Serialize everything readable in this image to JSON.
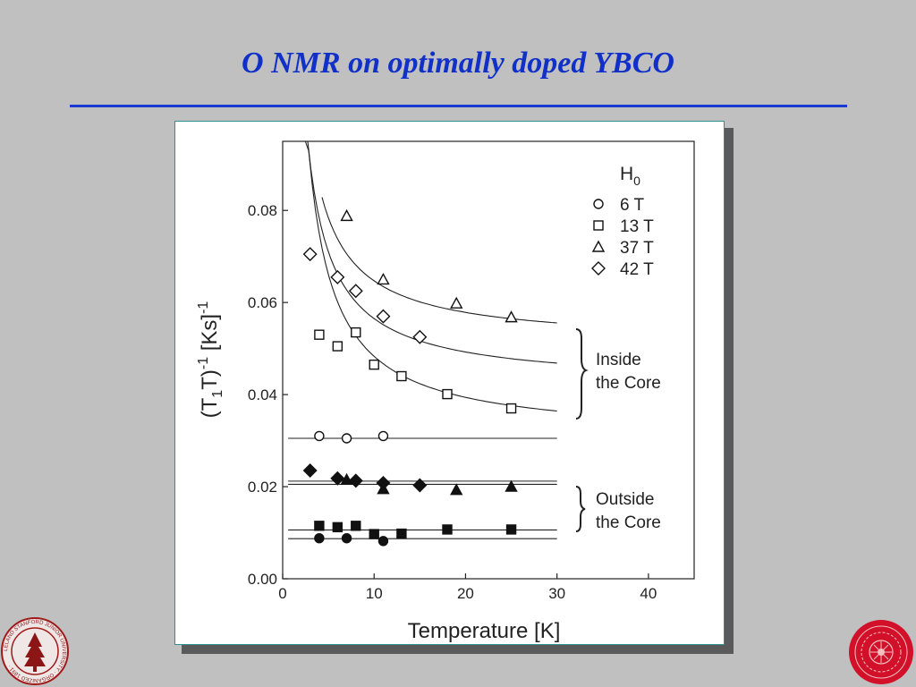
{
  "slide": {
    "title": "O NMR on optimally doped YBCO",
    "title_color": "#1030c8",
    "left_seal_text": "LELAND STANFORD JUNIOR UNIVERSITY · ORGANIZED 1891 ·"
  },
  "chart_data": {
    "type": "scatter",
    "title": "",
    "xlabel": "Temperature [K]",
    "ylabel": "(T1T)-1 [Ks]-1",
    "xlim": [
      0,
      45
    ],
    "ylim": [
      0,
      0.095
    ],
    "x_ticks": [
      "0",
      "10",
      "20",
      "30",
      "40"
    ],
    "y_ticks": [
      "0.00",
      "0.02",
      "0.04",
      "0.06",
      "0.08"
    ],
    "grid": false,
    "legend": {
      "title": "H0",
      "placement": "top-right",
      "entries": [
        {
          "marker": "circle",
          "label": "6 T"
        },
        {
          "marker": "square",
          "label": "13 T"
        },
        {
          "marker": "triangle",
          "label": "37 T"
        },
        {
          "marker": "diamond",
          "label": "42 T"
        }
      ]
    },
    "series": [
      {
        "name": "6 T",
        "marker": "circle",
        "fill": "open",
        "x": [
          4,
          7,
          11
        ],
        "y": [
          0.031,
          0.0305,
          0.031
        ]
      },
      {
        "name": "13 T",
        "marker": "square",
        "fill": "open",
        "x": [
          4,
          6,
          8,
          10,
          13,
          18,
          25
        ],
        "y": [
          0.053,
          0.0505,
          0.0535,
          0.0465,
          0.044,
          0.0401,
          0.037
        ]
      },
      {
        "name": "37 T",
        "marker": "triangle",
        "fill": "open",
        "x": [
          7,
          11,
          19,
          25
        ],
        "y": [
          0.0788,
          0.065,
          0.0598,
          0.0568
        ]
      },
      {
        "name": "42 T",
        "marker": "diamond",
        "fill": "open",
        "x": [
          3,
          6,
          8,
          11,
          15
        ],
        "y": [
          0.0705,
          0.0655,
          0.0625,
          0.057,
          0.0525
        ]
      },
      {
        "name": "6 T",
        "marker": "circle",
        "fill": "filled",
        "x": [
          4,
          7,
          11
        ],
        "y": [
          0.0088,
          0.0088,
          0.0082
        ]
      },
      {
        "name": "13 T",
        "marker": "square",
        "fill": "filled",
        "x": [
          4,
          6,
          8,
          10,
          13,
          18,
          25
        ],
        "y": [
          0.0115,
          0.0112,
          0.0115,
          0.0097,
          0.0098,
          0.0107,
          0.0107
        ]
      },
      {
        "name": "37 T",
        "marker": "triangle",
        "fill": "filled",
        "x": [
          7,
          11,
          19,
          25
        ],
        "y": [
          0.0215,
          0.0195,
          0.0193,
          0.02
        ]
      },
      {
        "name": "42 T",
        "marker": "diamond",
        "fill": "filled",
        "x": [
          3,
          6,
          8,
          11,
          15
        ],
        "y": [
          0.0235,
          0.0218,
          0.0213,
          0.0208,
          0.0203
        ]
      }
    ],
    "annotations": [
      {
        "text": "Inside the Core",
        "lines": [
          "Inside",
          "the Core"
        ],
        "y_range": [
          0.033,
          0.052
        ]
      },
      {
        "text": "Outside the Core",
        "lines": [
          "Outside",
          "the Core"
        ],
        "y_range": [
          0.01,
          0.0195
        ]
      }
    ]
  }
}
